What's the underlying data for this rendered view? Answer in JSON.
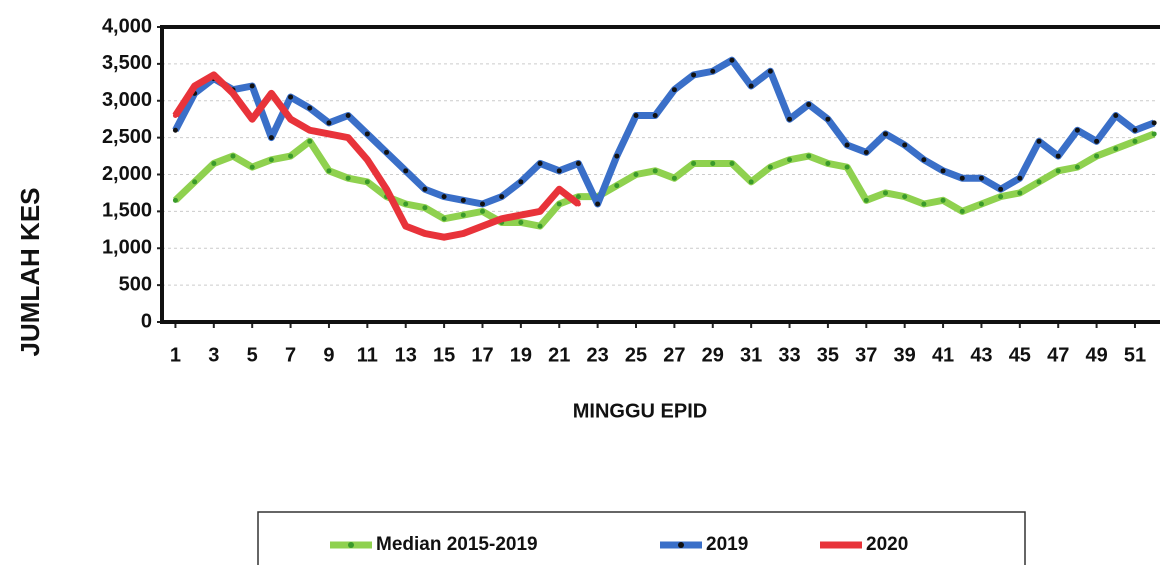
{
  "chart_data": {
    "type": "line",
    "x_label": "MINGGU EPID",
    "y_label": "JUMLAH KES",
    "x": [
      1,
      2,
      3,
      4,
      5,
      6,
      7,
      8,
      9,
      10,
      11,
      12,
      13,
      14,
      15,
      16,
      17,
      18,
      19,
      20,
      21,
      22,
      23,
      24,
      25,
      26,
      27,
      28,
      29,
      30,
      31,
      32,
      33,
      34,
      35,
      36,
      37,
      38,
      39,
      40,
      41,
      42,
      43,
      44,
      45,
      46,
      47,
      48,
      49,
      50,
      51,
      52
    ],
    "xlim": [
      0.3,
      52.2
    ],
    "xticks": [
      1,
      3,
      5,
      7,
      9,
      11,
      13,
      15,
      17,
      19,
      21,
      23,
      25,
      27,
      29,
      31,
      33,
      35,
      37,
      39,
      41,
      43,
      45,
      47,
      49,
      51
    ],
    "ylim": [
      0,
      4000
    ],
    "yticks": [
      0,
      500,
      {
        "value": 1000,
        "label": "1,000"
      },
      {
        "value": 1500,
        "label": "1,500"
      },
      {
        "value": 2000,
        "label": "2,000"
      },
      {
        "value": 2500,
        "label": "2,500"
      },
      {
        "value": 3000,
        "label": "3,000"
      },
      {
        "value": 3500,
        "label": "3,500"
      },
      {
        "value": 4000,
        "label": "4,000"
      }
    ],
    "grid": true,
    "legend": "bottom",
    "series": [
      {
        "name": "Median 2015-2019",
        "color": "#8fd14f",
        "marker_color": "#3a9a2a",
        "values": [
          1650,
          1900,
          2150,
          2250,
          2100,
          2200,
          2250,
          2450,
          2050,
          1950,
          1900,
          1700,
          1600,
          1550,
          1400,
          1450,
          1500,
          1350,
          1350,
          1300,
          1600,
          1700,
          1700,
          1850,
          2000,
          2050,
          1950,
          2150,
          2150,
          2150,
          1900,
          2100,
          2200,
          2250,
          2150,
          2100,
          1650,
          1750,
          1700,
          1600,
          1650,
          1500,
          1600,
          1700,
          1750,
          1900,
          2050,
          2100,
          2250,
          2350,
          2450,
          2550
        ]
      },
      {
        "name": "2019",
        "color": "#3a6fc8",
        "marker_color": "#111111",
        "values": [
          2600,
          3100,
          3300,
          3150,
          3200,
          2500,
          3050,
          2900,
          2700,
          2800,
          2550,
          2300,
          2050,
          1800,
          1700,
          1650,
          1600,
          1700,
          1900,
          2150,
          2050,
          2150,
          1600,
          2250,
          2800,
          2800,
          3150,
          3350,
          3400,
          3550,
          3200,
          3400,
          2750,
          2950,
          2750,
          2400,
          2300,
          2550,
          2400,
          2200,
          2050,
          1950,
          1950,
          1800,
          1950,
          2450,
          2250,
          2600,
          2450,
          2800,
          2600,
          2700
        ]
      },
      {
        "name": "2020",
        "color": "#e8333a",
        "marker_color": "#e8333a",
        "values": [
          2800,
          3200,
          3350,
          3100,
          2750,
          3100,
          2750,
          2600,
          2550,
          2500,
          2200,
          1800,
          1300,
          1200,
          1150,
          1200,
          1300,
          1400,
          1450,
          1500,
          1800,
          1600,
          null,
          null,
          null,
          null,
          null,
          null,
          null,
          null,
          null,
          null,
          null,
          null,
          null,
          null,
          null,
          null,
          null,
          null,
          null,
          null,
          null,
          null,
          null,
          null,
          null,
          null,
          null,
          null,
          null,
          null
        ]
      }
    ]
  }
}
